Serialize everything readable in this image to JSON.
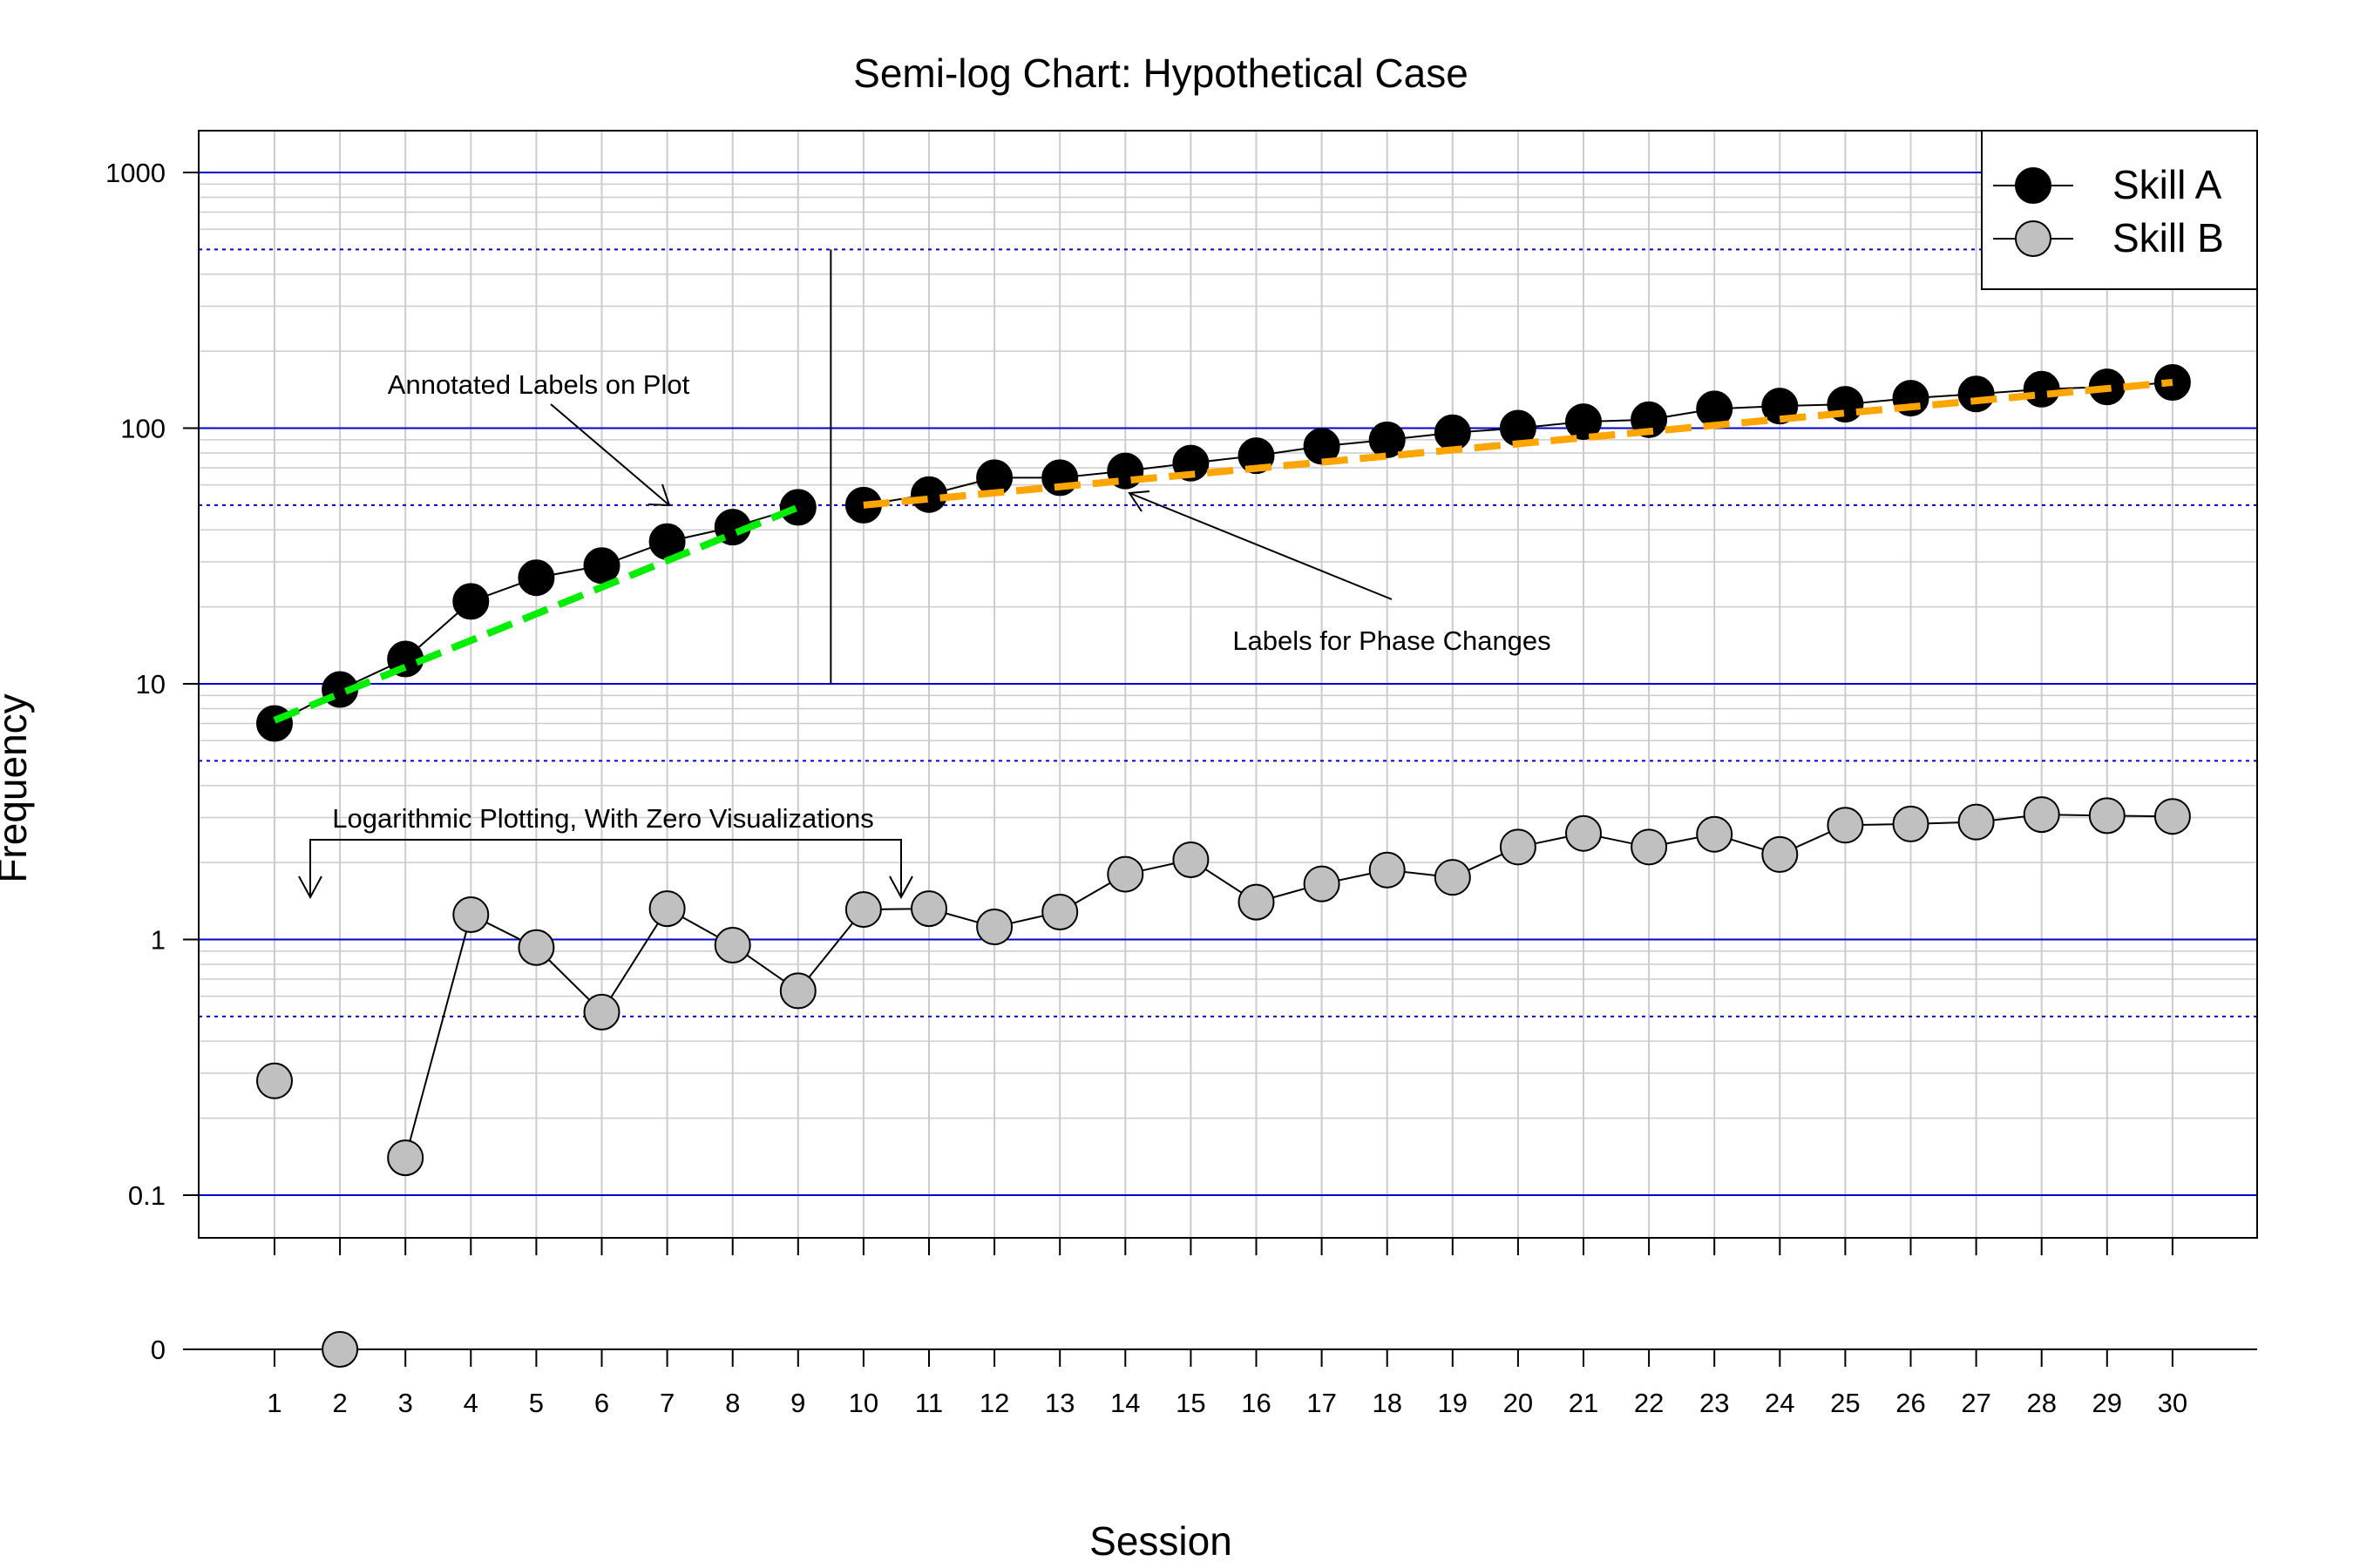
{
  "chart_data": {
    "type": "line",
    "title": "Semi-log Chart: Hypothetical Case",
    "xlabel": "Session",
    "ylabel": "Frequency",
    "y_scale": "log10 (with separate zero row below main panel)",
    "ylim": [
      0.1,
      1000
    ],
    "y_ticks": [
      "1000",
      "100",
      "10",
      "1",
      "0.1"
    ],
    "zero_tick": "0",
    "x_ticks": [
      "1",
      "2",
      "3",
      "4",
      "5",
      "6",
      "7",
      "8",
      "9",
      "10",
      "11",
      "12",
      "13",
      "14",
      "15",
      "16",
      "17",
      "18",
      "19",
      "20",
      "21",
      "22",
      "23",
      "24",
      "25",
      "26",
      "27",
      "28",
      "29",
      "30"
    ],
    "xlim": [
      0,
      31.2
    ],
    "grid": true,
    "legend_position": "top-right",
    "colors": {
      "major_grid": "#0000cd",
      "half_decade_grid": "#0000cd",
      "minor_grid": "#cccccc",
      "skill_a": "#000000",
      "skill_b": "#c0c0c0",
      "trend_phase1": "#00ee00",
      "trend_phase2": "#ffa500"
    },
    "series": [
      {
        "name": "Skill A",
        "marker": "black circle",
        "x": [
          1,
          2,
          3,
          4,
          5,
          6,
          7,
          8,
          9,
          10,
          11,
          12,
          13,
          14,
          15,
          16,
          17,
          18,
          19,
          20,
          21,
          22,
          23,
          24,
          25,
          26,
          27,
          28,
          29,
          30
        ],
        "values": [
          7,
          9.5,
          12.5,
          21,
          26,
          29,
          36,
          41,
          49,
          50,
          55,
          64,
          64,
          68,
          73,
          78,
          85,
          90,
          96,
          100,
          106,
          108,
          119,
          122,
          124,
          131,
          136,
          142,
          145,
          151
        ]
      },
      {
        "name": "Skill B",
        "marker": "gray circle",
        "x": [
          1,
          2,
          3,
          4,
          5,
          6,
          7,
          8,
          9,
          10,
          11,
          12,
          13,
          14,
          15,
          16,
          17,
          18,
          19,
          20,
          21,
          22,
          23,
          24,
          25,
          26,
          27,
          28,
          29,
          30
        ],
        "values": [
          0.28,
          0,
          0.14,
          1.25,
          0.93,
          0.52,
          1.32,
          0.95,
          0.63,
          1.31,
          1.32,
          1.12,
          1.28,
          1.8,
          2.05,
          1.4,
          1.65,
          1.87,
          1.75,
          2.3,
          2.6,
          2.3,
          2.58,
          2.15,
          2.8,
          2.83,
          2.88,
          3.08,
          3.05,
          3.03
        ]
      }
    ],
    "trend_lines": [
      {
        "phase": "1",
        "style": "dashed",
        "x": [
          1,
          9
        ],
        "values": [
          7.2,
          49
        ]
      },
      {
        "phase": "2",
        "style": "dashed",
        "x": [
          10,
          30
        ],
        "values": [
          50,
          151
        ]
      }
    ],
    "phase_change_x": 9.5,
    "phase_line_range": [
      10,
      500
    ],
    "annotations": [
      {
        "text": "Annotated Labels on Plot"
      },
      {
        "text": "Labels for Phase Changes"
      },
      {
        "text": "Logarithmic Plotting, With Zero Visualizations"
      }
    ]
  }
}
